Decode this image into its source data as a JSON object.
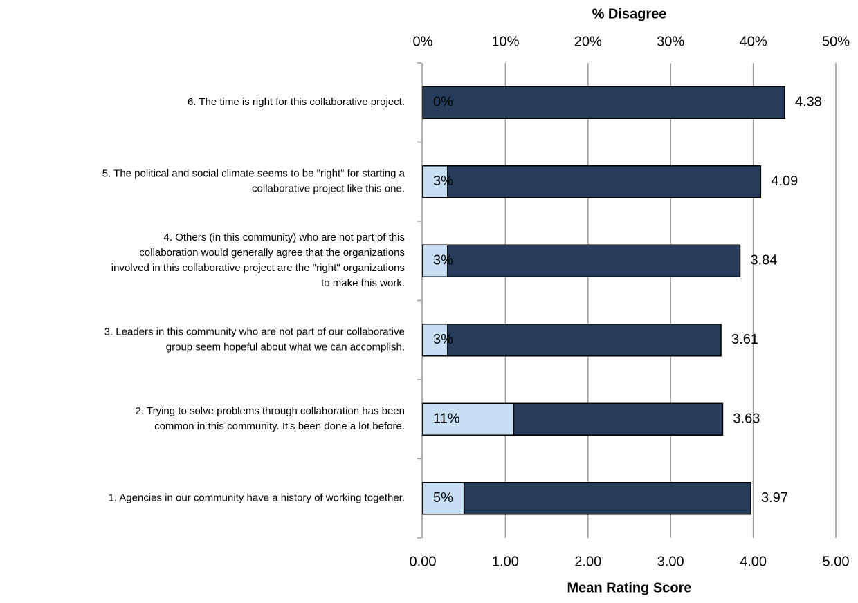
{
  "chart_data": {
    "type": "bar",
    "orientation": "horizontal",
    "top_axis": {
      "title": "% Disagree",
      "ticks": [
        "0%",
        "10%",
        "20%",
        "30%",
        "40%",
        "50%"
      ],
      "range": [
        0,
        50
      ]
    },
    "bottom_axis": {
      "title": "Mean Rating Score",
      "ticks": [
        "0.00",
        "1.00",
        "2.00",
        "3.00",
        "4.00",
        "5.00"
      ],
      "range": [
        0,
        5
      ]
    },
    "grid": true,
    "categories": [
      {
        "lines": [
          "6. The time is right for this collaborative project."
        ]
      },
      {
        "lines": [
          "5. The political and social climate seems to be \"right\" for starting a",
          "collaborative project like this one."
        ]
      },
      {
        "lines": [
          "4. Others (in this community) who are not part of this",
          "collaboration would generally agree that the organizations",
          "involved in this collaborative project are the \"right\" organizations",
          "to make this work."
        ]
      },
      {
        "lines": [
          "3. Leaders in this community who are not part of our collaborative",
          "group seem hopeful about what we can accomplish."
        ]
      },
      {
        "lines": [
          "2. Trying to solve problems through collaboration has been",
          "common in this community. It's been done a lot before."
        ]
      },
      {
        "lines": [
          "1. Agencies in our community have a history of working together."
        ]
      }
    ],
    "series": [
      {
        "axis": "bottom",
        "color": "#253d5b",
        "values": [
          4.38,
          4.09,
          3.84,
          3.61,
          3.63,
          3.97
        ],
        "labels": [
          "4.38",
          "4.09",
          "3.84",
          "3.61",
          "3.63",
          "3.97"
        ]
      },
      {
        "axis": "top",
        "color": "#c6dff5",
        "values": [
          0,
          3,
          3,
          3,
          11,
          5
        ],
        "labels": [
          "0%",
          "3%",
          "3%",
          "3%",
          "11%",
          "5%"
        ]
      }
    ]
  }
}
